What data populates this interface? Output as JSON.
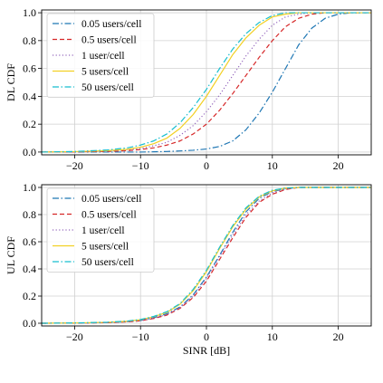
{
  "chart_data": [
    {
      "type": "line",
      "ylabel": "DL CDF",
      "xlabel": "",
      "xlim": [
        -25,
        25
      ],
      "ylim": [
        -0.02,
        1.02
      ],
      "xticks": [
        -20,
        -10,
        0,
        10,
        20
      ],
      "yticks": [
        0.0,
        0.2,
        0.4,
        0.6,
        0.8,
        1.0
      ],
      "grid": true,
      "legend_position": "top-left",
      "x": [
        -25,
        -20,
        -15,
        -12,
        -10,
        -8,
        -6,
        -4,
        -2,
        0,
        2,
        4,
        6,
        8,
        10,
        12,
        14,
        16,
        18,
        20,
        22,
        25
      ],
      "series": [
        {
          "name": "0.05 users/cell",
          "color": "#1f77b4",
          "dash": "dashdot",
          "values": [
            0,
            0,
            0,
            0,
            0,
            0.002,
            0.004,
            0.008,
            0.013,
            0.022,
            0.04,
            0.08,
            0.16,
            0.28,
            0.43,
            0.6,
            0.77,
            0.89,
            0.96,
            0.99,
            1.0,
            1.0
          ]
        },
        {
          "name": "0.5 users/cell",
          "color": "#d62728",
          "dash": "dashed",
          "values": [
            0,
            0.001,
            0.005,
            0.01,
            0.018,
            0.03,
            0.05,
            0.08,
            0.13,
            0.2,
            0.3,
            0.42,
            0.55,
            0.68,
            0.8,
            0.9,
            0.96,
            0.99,
            1.0,
            1.0,
            1.0,
            1.0
          ]
        },
        {
          "name": "1 user/cell",
          "color": "#9467bd",
          "dash": "dotted",
          "values": [
            0,
            0.002,
            0.007,
            0.015,
            0.025,
            0.045,
            0.07,
            0.12,
            0.19,
            0.29,
            0.41,
            0.55,
            0.69,
            0.81,
            0.91,
            0.97,
            0.99,
            1.0,
            1.0,
            1.0,
            1.0,
            1.0
          ]
        },
        {
          "name": "5 users/cell",
          "color": "#f2d024",
          "dash": "solid",
          "values": [
            0,
            0.003,
            0.01,
            0.02,
            0.035,
            0.06,
            0.1,
            0.17,
            0.27,
            0.4,
            0.55,
            0.7,
            0.82,
            0.91,
            0.97,
            0.99,
            1.0,
            1.0,
            1.0,
            1.0,
            1.0,
            1.0
          ]
        },
        {
          "name": "50 users/cell",
          "color": "#17becf",
          "dash": "dashdot",
          "values": [
            0,
            0.004,
            0.015,
            0.03,
            0.05,
            0.08,
            0.13,
            0.21,
            0.32,
            0.45,
            0.6,
            0.74,
            0.85,
            0.93,
            0.98,
            1.0,
            1.0,
            1.0,
            1.0,
            1.0,
            1.0,
            1.0
          ]
        }
      ]
    },
    {
      "type": "line",
      "ylabel": "UL CDF",
      "xlabel": "SINR [dB]",
      "xlim": [
        -25,
        25
      ],
      "ylim": [
        -0.02,
        1.02
      ],
      "xticks": [
        -20,
        -10,
        0,
        10,
        20
      ],
      "yticks": [
        0.0,
        0.2,
        0.4,
        0.6,
        0.8,
        1.0
      ],
      "grid": true,
      "legend_position": "top-left",
      "x": [
        -25,
        -20,
        -15,
        -12,
        -10,
        -8,
        -6,
        -4,
        -2,
        0,
        2,
        4,
        6,
        8,
        10,
        12,
        14,
        16,
        20,
        25
      ],
      "series": [
        {
          "name": "0.05 users/cell",
          "color": "#1f77b4",
          "dash": "dashdot",
          "values": [
            0,
            0.001,
            0.005,
            0.012,
            0.02,
            0.04,
            0.07,
            0.12,
            0.21,
            0.34,
            0.5,
            0.67,
            0.82,
            0.92,
            0.97,
            0.99,
            1.0,
            1.0,
            1.0,
            1.0
          ]
        },
        {
          "name": "0.5 users/cell",
          "color": "#d62728",
          "dash": "dashed",
          "values": [
            0,
            0.001,
            0.004,
            0.01,
            0.018,
            0.035,
            0.06,
            0.11,
            0.19,
            0.31,
            0.47,
            0.63,
            0.78,
            0.89,
            0.95,
            0.985,
            1.0,
            1.0,
            1.0,
            1.0
          ]
        },
        {
          "name": "1 user/cell",
          "color": "#9467bd",
          "dash": "dotted",
          "values": [
            0,
            0.001,
            0.005,
            0.011,
            0.02,
            0.038,
            0.065,
            0.115,
            0.2,
            0.33,
            0.49,
            0.65,
            0.8,
            0.9,
            0.96,
            0.99,
            1.0,
            1.0,
            1.0,
            1.0
          ]
        },
        {
          "name": "5 users/cell",
          "color": "#f2d024",
          "dash": "solid",
          "values": [
            0,
            0.002,
            0.007,
            0.015,
            0.026,
            0.048,
            0.08,
            0.14,
            0.24,
            0.38,
            0.55,
            0.71,
            0.84,
            0.93,
            0.975,
            0.995,
            1.0,
            1.0,
            1.0,
            1.0
          ]
        },
        {
          "name": "50 users/cell",
          "color": "#17becf",
          "dash": "dashdot",
          "values": [
            0,
            0.002,
            0.008,
            0.016,
            0.028,
            0.05,
            0.085,
            0.145,
            0.25,
            0.39,
            0.56,
            0.72,
            0.85,
            0.935,
            0.98,
            0.995,
            1.0,
            1.0,
            1.0,
            1.0
          ]
        }
      ]
    }
  ]
}
